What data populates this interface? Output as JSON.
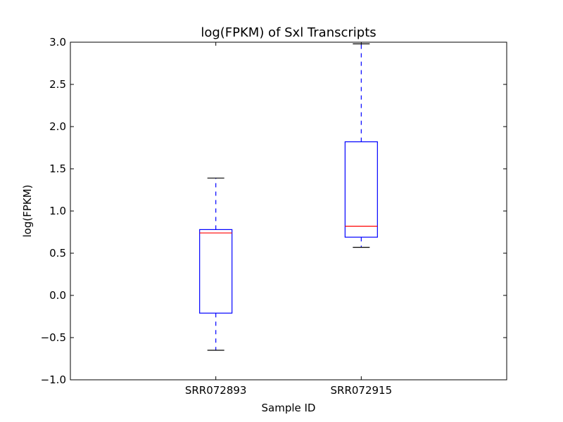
{
  "chart_data": {
    "type": "boxplot",
    "title": "log(FPKM) of Sxl Transcripts",
    "xlabel": "Sample ID",
    "ylabel": "log(FPKM)",
    "ylim": [
      -1.0,
      3.0
    ],
    "yticks": [
      "−1.0",
      "−0.5",
      "0.0",
      "0.5",
      "1.0",
      "1.5",
      "2.0",
      "2.5",
      "3.0"
    ],
    "ytick_values": [
      -1.0,
      -0.5,
      0.0,
      0.5,
      1.0,
      1.5,
      2.0,
      2.5,
      3.0
    ],
    "grid": false,
    "categories": [
      "SRR072893",
      "SRR072915"
    ],
    "boxes": [
      {
        "whisker_low": -0.65,
        "q1": -0.21,
        "median": 0.74,
        "q3": 0.78,
        "whisker_high": 1.39
      },
      {
        "whisker_low": 0.57,
        "q1": 0.69,
        "median": 0.82,
        "q3": 1.82,
        "whisker_high": 2.98
      }
    ],
    "colors": {
      "box": "#0000ff",
      "whisker": "#0000ff",
      "median": "#ff0000",
      "cap": "#000000",
      "axes": "#000000"
    }
  }
}
